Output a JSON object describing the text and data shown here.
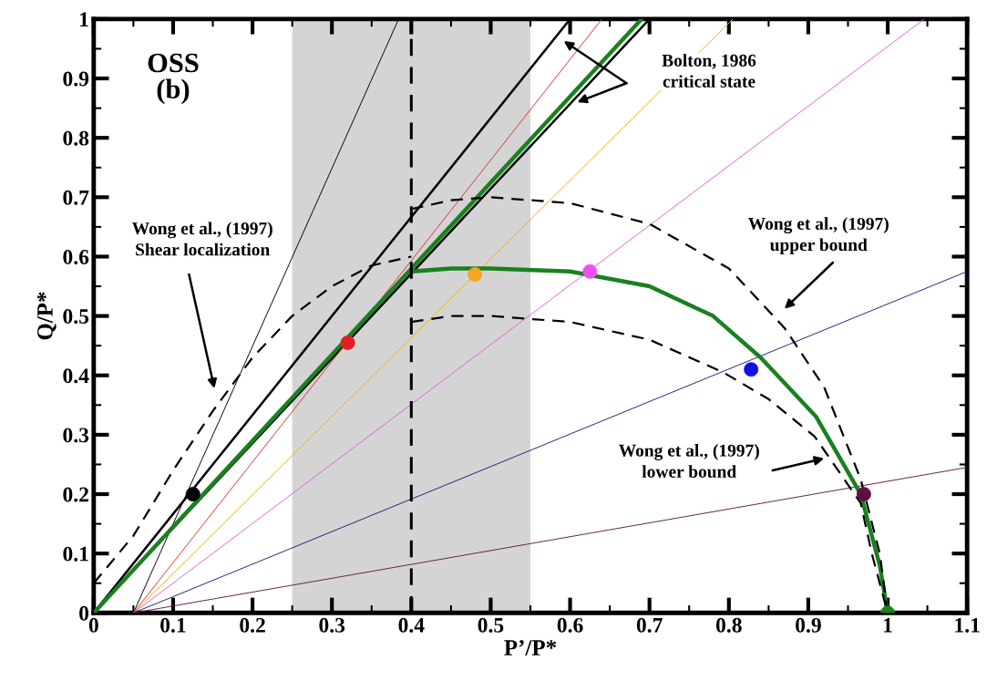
{
  "chart_data": {
    "type": "line",
    "xlabel": "P’/P*",
    "ylabel": "Q/P*",
    "xlim": [
      0,
      1.1
    ],
    "ylim": [
      0,
      1
    ],
    "xticks": [
      0,
      0.1,
      0.2,
      0.3,
      0.4,
      0.5,
      0.6,
      0.7,
      0.8,
      0.9,
      1,
      1.1
    ],
    "yticks": [
      0,
      0.1,
      0.2,
      0.3,
      0.4,
      0.5,
      0.6,
      0.7,
      0.8,
      0.9,
      1
    ],
    "grid": false,
    "legend": false,
    "series": [
      {
        "color": "#000000",
        "x": [
          0.05,
          0.384
        ],
        "values": [
          0,
          1
        ]
      },
      {
        "color": "#000000",
        "x": [
          0,
          0.6
        ],
        "values": [
          0,
          1
        ]
      },
      {
        "color": "#000000",
        "x": [
          0,
          0.7
        ],
        "values": [
          0,
          1
        ]
      },
      {
        "color": "#e03030",
        "x": [
          0.05,
          0.64
        ],
        "values": [
          0,
          1
        ]
      },
      {
        "color": "#f0b000",
        "x": [
          0.05,
          0.805
        ],
        "values": [
          0,
          1
        ]
      },
      {
        "color": "#e060e0",
        "x": [
          0.05,
          1.046
        ],
        "values": [
          0,
          1
        ]
      },
      {
        "color": "#202080",
        "x": [
          0.05,
          1.1
        ],
        "values": [
          0,
          0.575
        ]
      },
      {
        "color": "#602040",
        "x": [
          0.05,
          1.1
        ],
        "values": [
          0,
          0.245
        ]
      },
      {
        "color": "#1a8020",
        "x": [
          0,
          0.69
        ],
        "values": [
          0,
          1
        ]
      },
      {
        "color": "#1a8020",
        "x": [
          0.4,
          0.45,
          0.5,
          0.6,
          0.7,
          0.78,
          0.84,
          0.91,
          0.966,
          0.99,
          1
        ],
        "values": [
          0.575,
          0.58,
          0.58,
          0.575,
          0.55,
          0.5,
          0.43,
          0.33,
          0.2,
          0.08,
          0
        ]
      },
      {
        "color": "#000000",
        "line_style": "dashed",
        "x": [
          0,
          0.05,
          0.1,
          0.15,
          0.2,
          0.25,
          0.3,
          0.35,
          0.4
        ],
        "values": [
          0.05,
          0.13,
          0.24,
          0.34,
          0.43,
          0.5,
          0.55,
          0.585,
          0.6
        ]
      },
      {
        "color": "#000000",
        "line_style": "dashed",
        "x": [
          0.4,
          0.45,
          0.5,
          0.6,
          0.7,
          0.8,
          0.87,
          0.92,
          0.966,
          0.99,
          1
        ],
        "values": [
          0.68,
          0.695,
          0.7,
          0.69,
          0.655,
          0.58,
          0.48,
          0.38,
          0.225,
          0.1,
          0
        ]
      },
      {
        "color": "#000000",
        "line_style": "dashed",
        "x": [
          0.4,
          0.45,
          0.5,
          0.6,
          0.7,
          0.793,
          0.85,
          0.908,
          0.966,
          0.98,
          1
        ],
        "values": [
          0.49,
          0.5,
          0.5,
          0.49,
          0.46,
          0.405,
          0.36,
          0.297,
          0.185,
          0.1,
          0
        ]
      },
      {
        "type": "scatter",
        "marker": "circle",
        "x": [
          0.125,
          0.32,
          0.48,
          0.625,
          0.828,
          0.97,
          1
        ],
        "values": [
          0.2,
          0.455,
          0.57,
          0.575,
          0.41,
          0.2,
          0
        ],
        "colors": [
          "#000000",
          "#e02020",
          "#f5a623",
          "#f050f0",
          "#1010e0",
          "#601040",
          "#1a8020"
        ]
      }
    ],
    "ref_lines": [
      {
        "axis": "x",
        "value": 0.4,
        "color": "#000000",
        "line_style": "dashed"
      }
    ],
    "bands": [
      {
        "axis": "x",
        "from": 0.25,
        "to": 0.55,
        "color": "#d4d4d4"
      }
    ],
    "annotations": [
      "OSS\n(b)",
      "Bolton, 1986\ncritical state",
      "Wong et al., (1997)\nShear localization",
      "Wong et al., (1997)\nupper bound",
      "Wong et al., (1997)\nlower bound"
    ]
  }
}
